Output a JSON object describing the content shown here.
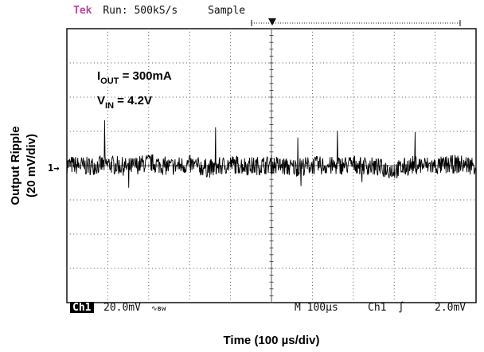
{
  "header": {
    "brand": "Tek",
    "run_label": "Run: 500kS/s",
    "mode": "Sample"
  },
  "status_bar": {
    "channel_label": "Ch1",
    "scale": "20.0mV",
    "bandwidth_symbol": "∿ʙᴡ",
    "timebase": "M 100µs",
    "trigger_source": "Ch1",
    "trigger_slope_symbol": "∫",
    "trigger_level": "2.0mV"
  },
  "annotations": {
    "current_base": "I",
    "current_sub": "OUT",
    "current_value": " = 300mA",
    "voltage_base": "V",
    "voltage_sub": "IN",
    "voltage_value": " = 4.2V"
  },
  "ground_marker": "1→",
  "chart_data": {
    "type": "line",
    "title": "",
    "xlabel": "Time (100 µs/div)",
    "ylabel_line1": "Output Ripple",
    "ylabel_line2": "(20 mV/div)",
    "x_divisions": 10,
    "y_divisions": 8,
    "xlim_div": [
      0,
      10
    ],
    "ylim_div": [
      -4,
      4
    ],
    "grid": true,
    "series": [
      {
        "trace_description": "noisy output ripple around 0 div",
        "x_div": [
          0,
          0.5,
          1,
          1.5,
          2,
          2.5,
          3,
          3.5,
          4,
          4.5,
          5,
          5.5,
          6,
          6.5,
          7,
          7.5,
          8,
          8.5,
          9,
          9.5,
          10
        ],
        "y_div": [
          0.2,
          -0.1,
          0.3,
          -0.3,
          0.6,
          -0.2,
          0.2,
          -0.6,
          0.3,
          -0.1,
          0.2,
          -0.4,
          0.1,
          -0.1,
          0.3,
          -0.2,
          -0.9,
          0.2,
          -0.1,
          0.3,
          0.1
        ]
      }
    ]
  }
}
